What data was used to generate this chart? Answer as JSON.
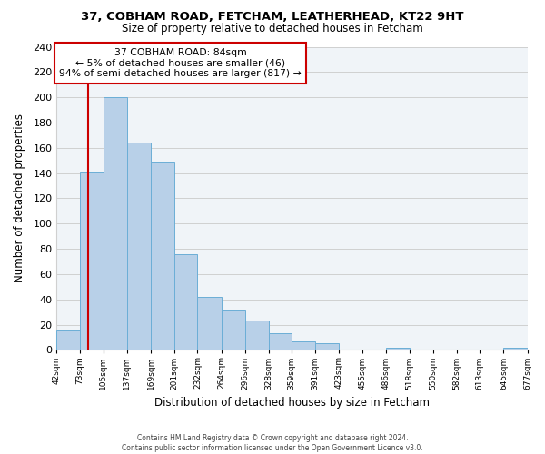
{
  "title1": "37, COBHAM ROAD, FETCHAM, LEATHERHEAD, KT22 9HT",
  "title2": "Size of property relative to detached houses in Fetcham",
  "xlabel": "Distribution of detached houses by size in Fetcham",
  "ylabel": "Number of detached properties",
  "bin_edges": [
    42,
    73,
    105,
    137,
    169,
    201,
    232,
    264,
    296,
    328,
    359,
    391,
    423,
    455,
    486,
    518,
    550,
    582,
    613,
    645,
    677
  ],
  "counts": [
    16,
    141,
    200,
    164,
    149,
    76,
    42,
    32,
    23,
    13,
    7,
    5,
    0,
    0,
    2,
    0,
    0,
    0,
    0,
    2
  ],
  "bar_color": "#b8d0e8",
  "bar_edge_color": "#6baed6",
  "property_line_x": 84,
  "annotation_line1": "37 COBHAM ROAD: 84sqm",
  "annotation_line2": "← 5% of detached houses are smaller (46)",
  "annotation_line3": "94% of semi-detached houses are larger (817) →",
  "vline_color": "#cc0000",
  "footer1": "Contains HM Land Registry data © Crown copyright and database right 2024.",
  "footer2": "Contains public sector information licensed under the Open Government Licence v3.0.",
  "ylim": [
    0,
    240
  ],
  "yticks": [
    0,
    20,
    40,
    60,
    80,
    100,
    120,
    140,
    160,
    180,
    200,
    220,
    240
  ],
  "tick_labels": [
    "42sqm",
    "73sqm",
    "105sqm",
    "137sqm",
    "169sqm",
    "201sqm",
    "232sqm",
    "264sqm",
    "296sqm",
    "328sqm",
    "359sqm",
    "391sqm",
    "423sqm",
    "455sqm",
    "486sqm",
    "518sqm",
    "550sqm",
    "582sqm",
    "613sqm",
    "645sqm",
    "677sqm"
  ],
  "grid_color": "#d0d0d0",
  "bg_color": "#f0f4f8"
}
